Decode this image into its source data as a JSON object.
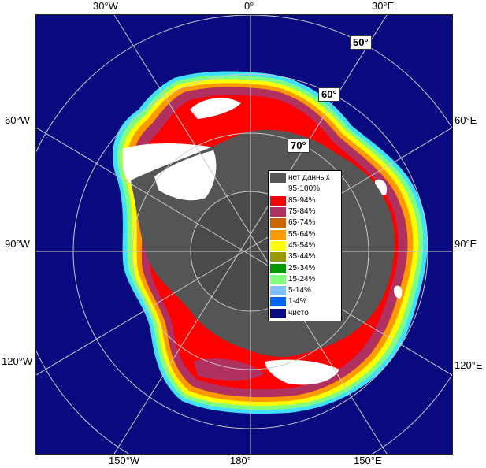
{
  "map": {
    "top_labels": [
      "30°W",
      "0°",
      "30°E"
    ],
    "left_labels": [
      "60°W",
      "90°W",
      "120°W"
    ],
    "right_labels": [
      "60°E",
      "90°E",
      "120°E"
    ],
    "bottom_labels": [
      "150°W",
      "180°",
      "150°E"
    ],
    "latitude_labels": [
      "50°",
      "60°",
      "70°"
    ],
    "colors": {
      "open_water": "#0a0a80",
      "no_data": "#555555",
      "c95_100": "#ffffff",
      "c85_94": "#ff0000",
      "c75_84": "#b03060",
      "c65_74": "#cc6600",
      "c55_64": "#ff9900",
      "edge_yellow": "#ffff00",
      "edge_green": "#80ff80",
      "edge_cyan": "#40e0ff"
    }
  },
  "legend": {
    "items": [
      {
        "label": "нет данных",
        "color": "#555555"
      },
      {
        "label": "95-100%",
        "color": "#ffffff"
      },
      {
        "label": "85-94%",
        "color": "#ff0000"
      },
      {
        "label": "75-84%",
        "color": "#b03060"
      },
      {
        "label": "65-74%",
        "color": "#cc6600"
      },
      {
        "label": "55-64%",
        "color": "#ff9900"
      },
      {
        "label": "45-54%",
        "color": "#ffff00"
      },
      {
        "label": "35-44%",
        "color": "#999900"
      },
      {
        "label": "25-34%",
        "color": "#009900"
      },
      {
        "label": "15-24%",
        "color": "#80ff80"
      },
      {
        "label": "5-14%",
        "color": "#80c0ff"
      },
      {
        "label": "1-4%",
        "color": "#0066ff"
      },
      {
        "label": "чисто",
        "color": "#0a0a80"
      }
    ]
  }
}
